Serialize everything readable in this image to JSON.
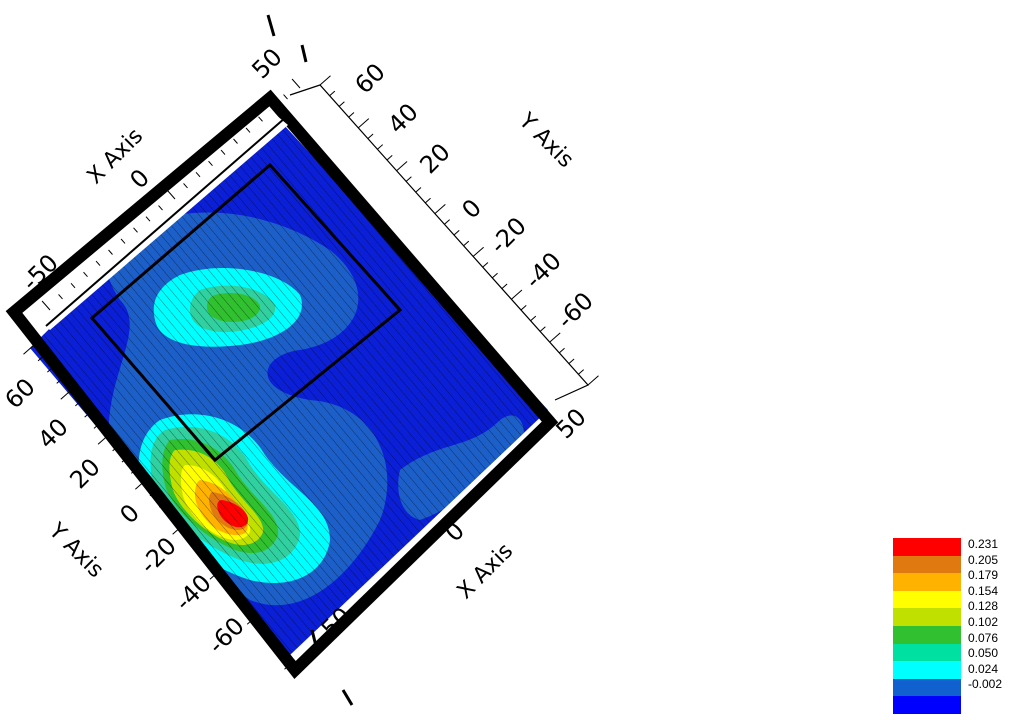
{
  "chart_data": {
    "type": "heatmap",
    "subtype": "3d filled contour surface, top-down rotated view",
    "x_axis": {
      "title": "X Axis",
      "range": [
        -50,
        50
      ],
      "ticks": [
        -50,
        0,
        50
      ],
      "tick_labels": [
        "-50",
        "0",
        "50"
      ]
    },
    "y_axis": {
      "title": "Y Axis",
      "range": [
        -70,
        70
      ],
      "ticks": [
        -60,
        -40,
        -20,
        0,
        20,
        40,
        60
      ],
      "tick_labels": [
        "-60",
        "-40",
        "-20",
        "0",
        "20",
        "40",
        "60"
      ]
    },
    "colorbar": {
      "levels": [
        0.231,
        0.205,
        0.179,
        0.154,
        0.128,
        0.102,
        0.076,
        0.05,
        0.024,
        -0.002
      ],
      "labels": [
        "0.231",
        "0.205",
        "0.179",
        "0.154",
        "0.128",
        "0.102",
        "0.076",
        "0.050",
        "0.024",
        "-0.002"
      ],
      "colors": [
        "#ff0000",
        "#e07a10",
        "#ffb300",
        "#ffff00",
        "#c0e000",
        "#30c030",
        "#00e0a0",
        "#00ffff",
        "#1060d0",
        "#0000ff"
      ]
    },
    "peaks": [
      {
        "x": -45,
        "y": -5,
        "value": 0.231
      },
      {
        "x": -10,
        "y": 45,
        "value": 0.102
      },
      {
        "x": -40,
        "y": 25,
        "value": 0.128
      }
    ],
    "grid": true
  },
  "colors": {
    "background": "#ffffff",
    "frame": "#000000",
    "base_blue": "#0b1fd6"
  }
}
